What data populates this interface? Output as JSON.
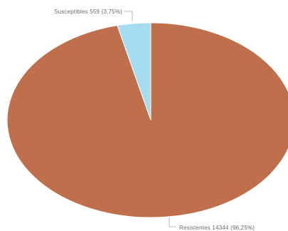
{
  "chart_data": {
    "type": "pie",
    "title": "",
    "slices": [
      {
        "name": "Susceptibles",
        "value": 559,
        "percent": 3.75,
        "label": "Susceptibles 559 (3,75%)",
        "color": "#a6dcef"
      },
      {
        "name": "Resistentes",
        "value": 14344,
        "percent": 96.25,
        "label": "Resistentes 14344 (96,25%)",
        "color": "#bf6f4b"
      }
    ],
    "legend": "none",
    "start_angle": "12-o-clock",
    "direction": "counter-clockwise-for-first-slice"
  }
}
